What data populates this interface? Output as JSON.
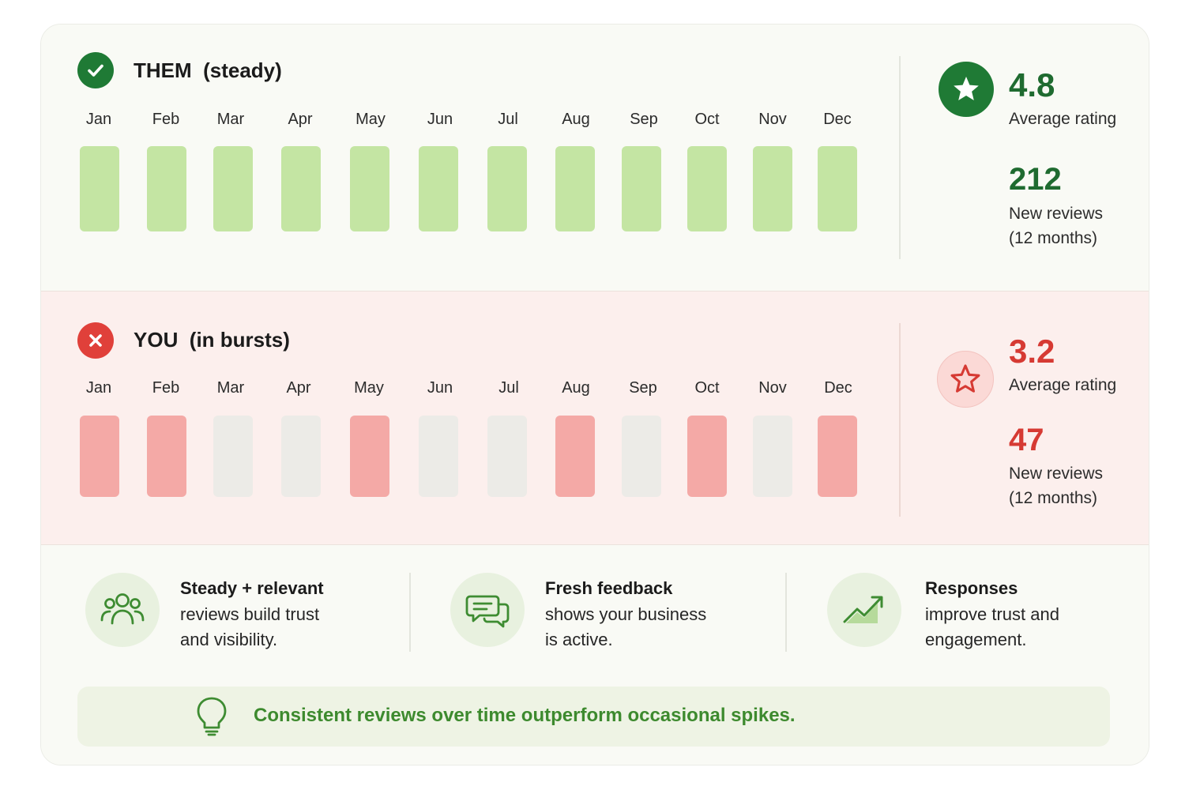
{
  "months": [
    "Jan",
    "Feb",
    "Mar",
    "Apr",
    "May",
    "Jun",
    "Jul",
    "Aug",
    "Sep",
    "Oct",
    "Nov",
    "Dec"
  ],
  "them": {
    "title": "THEM  (steady)",
    "status_icon": "check-circle-icon",
    "active_months": [
      true,
      true,
      true,
      true,
      true,
      true,
      true,
      true,
      true,
      true,
      true,
      true
    ],
    "rating": "4.8",
    "rating_label": "Average rating",
    "reviews_count": "212",
    "reviews_label_line1": "New reviews",
    "reviews_label_line2": "(12 months)",
    "color_active": "#c4e5a3",
    "color_accent": "#1f7a35"
  },
  "you": {
    "title": "YOU  (in bursts)",
    "status_icon": "x-circle-icon",
    "active_months": [
      true,
      true,
      false,
      false,
      true,
      false,
      false,
      true,
      false,
      true,
      false,
      true
    ],
    "rating": "3.2",
    "rating_label": "Average rating",
    "reviews_count": "47",
    "reviews_label_line1": "New reviews",
    "reviews_label_line2": "(12 months)",
    "color_active": "#f4a9a6",
    "color_inactive": "#ecebe7",
    "color_accent": "#d63a33"
  },
  "benefits": [
    {
      "icon": "people-icon",
      "title": "Steady + relevant",
      "line1": "reviews build trust",
      "line2": "and visibility."
    },
    {
      "icon": "chat-bubbles-icon",
      "title": "Fresh feedback",
      "line1": "shows your business",
      "line2": "is active."
    },
    {
      "icon": "trending-up-icon",
      "title": "Responses",
      "line1": "improve trust and",
      "line2": "engagement."
    }
  ],
  "tip": {
    "icon": "lightbulb-icon",
    "text": "Consistent reviews over time outperform occasional spikes."
  }
}
